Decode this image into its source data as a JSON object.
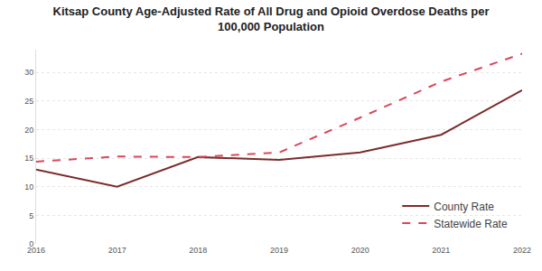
{
  "chart_data": {
    "type": "line",
    "title": "Kitsap County Age-Adjusted Rate of All Drug and Opioid Overdose Deaths per 100,000 Population",
    "x": [
      2016,
      2017,
      2018,
      2019,
      2020,
      2021,
      2022
    ],
    "series": [
      {
        "name": "County Rate",
        "color": "#7b2c2c",
        "line_style": "solid",
        "values": [
          13.0,
          10.0,
          15.2,
          14.7,
          16.0,
          19.1,
          26.9
        ]
      },
      {
        "name": "Statewide Rate",
        "color": "#d9475a",
        "line_style": "dash",
        "values": [
          14.4,
          15.3,
          15.2,
          16.0,
          22.1,
          28.4,
          33.3
        ]
      }
    ],
    "xlim": [
      2016,
      2022
    ],
    "xticks": [
      2016,
      2017,
      2018,
      2019,
      2020,
      2021,
      2022
    ],
    "ylim": [
      0,
      34
    ],
    "yticks": [
      0,
      5,
      10,
      15,
      20,
      25,
      30
    ],
    "grid": true,
    "legend": "bottom right"
  }
}
